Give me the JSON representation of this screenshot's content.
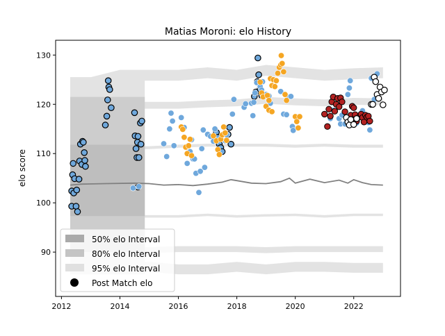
{
  "chart_data": {
    "type": "scatter",
    "title": "Matias Moroni: elo History",
    "xlabel": "",
    "ylabel": "elo score",
    "xlim": [
      2011.8,
      2023.6
    ],
    "ylim": [
      81,
      133
    ],
    "x_ticks": [
      2012,
      2014,
      2016,
      2018,
      2020,
      2022
    ],
    "y_ticks": [
      90,
      100,
      110,
      120,
      130
    ],
    "grid": false,
    "legend": {
      "placement": "lower-left",
      "entries": [
        {
          "label": "50% elo Interval",
          "swatch": "#aaaaaa",
          "kind": "patch"
        },
        {
          "label": "80% elo Interval",
          "swatch": "#c4c4c4",
          "kind": "patch"
        },
        {
          "label": "95% elo Interval",
          "swatch": "#e0e0e0",
          "kind": "patch"
        },
        {
          "label": "Post Match elo",
          "swatch": "#000000",
          "kind": "marker"
        }
      ]
    },
    "colors": {
      "interval_95": "#e3e3e3",
      "interval_80": "#cdcdcd",
      "interval_50": "#bebebe",
      "mean_line": "#808080",
      "blue_points": "#6fa8dc",
      "orange_points": "#f5a623",
      "red_points": "#b22222",
      "white_points": "#ffffff"
    },
    "mean_line": [
      [
        2012.3,
        103.6
      ],
      [
        2012.7,
        103.8
      ],
      [
        2013.5,
        103.9
      ],
      [
        2014.5,
        104.0
      ],
      [
        2015.0,
        103.9
      ],
      [
        2015.5,
        103.6
      ],
      [
        2016.0,
        103.7
      ],
      [
        2016.5,
        103.5
      ],
      [
        2017.0,
        103.8
      ],
      [
        2017.5,
        104.2
      ],
      [
        2017.8,
        104.7
      ],
      [
        2018.0,
        104.5
      ],
      [
        2018.5,
        104.0
      ],
      [
        2019.0,
        103.9
      ],
      [
        2019.5,
        104.3
      ],
      [
        2019.8,
        105.0
      ],
      [
        2020.0,
        104.0
      ],
      [
        2020.5,
        104.8
      ],
      [
        2021.0,
        104.1
      ],
      [
        2021.5,
        104.6
      ],
      [
        2021.8,
        104.0
      ],
      [
        2022.0,
        104.7
      ],
      [
        2022.3,
        104.1
      ],
      [
        2022.6,
        103.7
      ],
      [
        2023.0,
        103.6
      ]
    ],
    "bands": {
      "interval_95": {
        "x": [
          2012.3,
          2013.0,
          2014.0,
          2015.0,
          2016.0,
          2017.0,
          2018.0,
          2019.0,
          2020.0,
          2021.0,
          2022.0,
          2023.0
        ],
        "upper": [
          125.5,
          125.5,
          127.0,
          127.0,
          127.0,
          127.5,
          127.0,
          128.0,
          127.5,
          127.0,
          127.3,
          127.5
        ],
        "lower": [
          85.5,
          85.5,
          85.5,
          86.0,
          85.5,
          85.5,
          86.0,
          85.5,
          86.0,
          86.0,
          85.8,
          85.8
        ]
      },
      "interval_80": {
        "x": [
          2012.3,
          2013.0,
          2014.0,
          2015.0,
          2016.0,
          2017.0,
          2018.0,
          2019.0,
          2020.0,
          2021.0,
          2022.0,
          2023.0
        ],
        "upper": [
          121.5,
          121.5,
          120.5,
          120.5,
          120.5,
          120.8,
          121.0,
          121.5,
          121.2,
          121.0,
          121.3,
          121.2
        ],
        "lower": [
          90.0,
          90.0,
          89.8,
          89.8,
          90.0,
          90.0,
          90.0,
          89.8,
          90.0,
          90.0,
          90.0,
          90.0
        ]
      },
      "interval_50": {
        "x": [
          2012.3,
          2013.0,
          2014.0,
          2015.0,
          2016.0,
          2017.0,
          2018.0,
          2019.0,
          2020.0,
          2021.0,
          2022.0,
          2023.0
        ],
        "upper": [
          111.8,
          111.8,
          111.5,
          111.5,
          111.8,
          112.0,
          112.0,
          112.0,
          111.8,
          112.0,
          111.8,
          111.8
        ],
        "lower": [
          97.3,
          97.3,
          97.0,
          97.0,
          97.0,
          97.3,
          97.0,
          97.2,
          97.3,
          97.0,
          97.3,
          97.3
        ]
      },
      "early_block_x": [
        2012.3,
        2014.85
      ]
    },
    "series": [
      {
        "style": "blue-black-edge",
        "points": [
          [
            2012.35,
            102.4
          ],
          [
            2012.35,
            99.3
          ],
          [
            2012.38,
            105.7
          ],
          [
            2012.4,
            108.0
          ],
          [
            2012.42,
            102.0
          ],
          [
            2012.45,
            104.9
          ],
          [
            2012.5,
            99.3
          ],
          [
            2012.52,
            102.6
          ],
          [
            2012.55,
            98.2
          ],
          [
            2012.6,
            104.8
          ],
          [
            2012.62,
            108.5
          ],
          [
            2012.65,
            111.9
          ],
          [
            2012.7,
            107.8
          ],
          [
            2012.72,
            112.5
          ],
          [
            2012.75,
            112.3
          ],
          [
            2012.78,
            110.2
          ],
          [
            2012.8,
            108.6
          ],
          [
            2012.82,
            107.4
          ],
          [
            2013.5,
            115.8
          ],
          [
            2013.55,
            117.6
          ],
          [
            2013.58,
            120.9
          ],
          [
            2013.6,
            124.8
          ],
          [
            2013.62,
            123.5
          ],
          [
            2013.65,
            123.0
          ],
          [
            2013.7,
            119.3
          ],
          [
            2014.5,
            118.3
          ],
          [
            2014.52,
            113.6
          ],
          [
            2014.55,
            111.0
          ],
          [
            2014.58,
            109.2
          ],
          [
            2014.6,
            112.3
          ],
          [
            2014.62,
            113.5
          ],
          [
            2014.65,
            109.2
          ],
          [
            2014.7,
            116.2
          ],
          [
            2014.72,
            111.9
          ],
          [
            2014.75,
            116.6
          ],
          [
            2014.62,
            103.2
          ],
          [
            2017.3,
            114.3
          ],
          [
            2017.35,
            113.3
          ],
          [
            2017.4,
            111.9
          ],
          [
            2017.45,
            111.2
          ],
          [
            2017.5,
            110.4
          ],
          [
            2017.7,
            113.9
          ],
          [
            2017.75,
            115.3
          ],
          [
            2017.8,
            111.9
          ],
          [
            2018.6,
            121.6
          ],
          [
            2018.65,
            122.5
          ],
          [
            2018.7,
            124.6
          ],
          [
            2018.72,
            129.4
          ],
          [
            2018.75,
            126.0
          ],
          [
            2018.8,
            123.1
          ],
          [
            2018.85,
            121.8
          ]
        ]
      },
      {
        "style": "blue-no-edge",
        "points": [
          [
            2014.45,
            103.0
          ],
          [
            2014.65,
            103.3
          ],
          [
            2015.5,
            112.0
          ],
          [
            2015.6,
            109.4
          ],
          [
            2015.7,
            115.0
          ],
          [
            2015.75,
            118.2
          ],
          [
            2015.8,
            116.6
          ],
          [
            2015.85,
            111.6
          ],
          [
            2016.1,
            117.3
          ],
          [
            2016.2,
            115.3
          ],
          [
            2016.3,
            108.0
          ],
          [
            2016.4,
            110.4
          ],
          [
            2016.45,
            112.8
          ],
          [
            2016.5,
            108.9
          ],
          [
            2016.55,
            108.9
          ],
          [
            2016.6,
            106.0
          ],
          [
            2016.7,
            102.1
          ],
          [
            2016.75,
            106.4
          ],
          [
            2016.8,
            111.0
          ],
          [
            2016.85,
            114.8
          ],
          [
            2016.9,
            107.2
          ],
          [
            2017.0,
            113.9
          ],
          [
            2017.1,
            113.5
          ],
          [
            2017.2,
            112.5
          ],
          [
            2017.25,
            115.0
          ],
          [
            2017.6,
            112.6
          ],
          [
            2017.65,
            113.8
          ],
          [
            2017.85,
            118.0
          ],
          [
            2017.9,
            121.0
          ],
          [
            2018.25,
            119.4
          ],
          [
            2018.3,
            120.1
          ],
          [
            2018.5,
            120.2
          ],
          [
            2018.55,
            117.7
          ],
          [
            2018.58,
            120.4
          ],
          [
            2018.62,
            122.3
          ],
          [
            2018.68,
            124.4
          ],
          [
            2018.8,
            123.6
          ],
          [
            2018.85,
            122.9
          ],
          [
            2018.88,
            124.6
          ],
          [
            2019.0,
            122.0
          ],
          [
            2019.1,
            121.7
          ],
          [
            2019.15,
            120.2
          ],
          [
            2019.5,
            122.6
          ],
          [
            2019.6,
            118.0
          ],
          [
            2019.7,
            117.9
          ],
          [
            2019.8,
            121.5
          ],
          [
            2019.85,
            121.6
          ],
          [
            2019.9,
            115.5
          ],
          [
            2019.93,
            114.7
          ],
          [
            2021.2,
            117.1
          ],
          [
            2021.3,
            118.8
          ],
          [
            2021.5,
            117.1
          ],
          [
            2021.55,
            116.0
          ],
          [
            2021.6,
            117.8
          ],
          [
            2021.7,
            116.0
          ],
          [
            2021.8,
            122.0
          ],
          [
            2021.85,
            123.3
          ],
          [
            2021.88,
            124.8
          ],
          [
            2021.9,
            117.3
          ],
          [
            2022.0,
            116.4
          ],
          [
            2022.1,
            116.2
          ],
          [
            2022.3,
            118.7
          ],
          [
            2022.4,
            117.4
          ],
          [
            2022.5,
            116.3
          ],
          [
            2022.55,
            114.8
          ],
          [
            2022.6,
            125.3
          ],
          [
            2022.7,
            121.0
          ],
          [
            2022.8,
            126.2
          ]
        ]
      },
      {
        "style": "orange",
        "points": [
          [
            2016.1,
            115.4
          ],
          [
            2016.15,
            114.9
          ],
          [
            2016.2,
            113.3
          ],
          [
            2016.25,
            111.3
          ],
          [
            2016.3,
            110.0
          ],
          [
            2016.35,
            111.6
          ],
          [
            2016.4,
            112.9
          ],
          [
            2016.45,
            109.6
          ],
          [
            2017.2,
            113.6
          ],
          [
            2017.3,
            112.6
          ],
          [
            2017.35,
            110.8
          ],
          [
            2017.4,
            109.8
          ],
          [
            2017.45,
            112.9
          ],
          [
            2017.5,
            113.8
          ],
          [
            2017.55,
            115.4
          ],
          [
            2017.6,
            114.2
          ],
          [
            2017.65,
            112.7
          ],
          [
            2018.8,
            124.5
          ],
          [
            2018.85,
            122.3
          ],
          [
            2018.9,
            121.5
          ],
          [
            2019.0,
            119.6
          ],
          [
            2019.05,
            121.8
          ],
          [
            2019.1,
            120.8
          ],
          [
            2019.15,
            125.2
          ],
          [
            2019.2,
            123.8
          ],
          [
            2019.25,
            125.0
          ],
          [
            2019.3,
            123.6
          ],
          [
            2019.35,
            124.8
          ],
          [
            2019.4,
            126.3
          ],
          [
            2019.45,
            127.5
          ],
          [
            2019.5,
            128.0
          ],
          [
            2019.52,
            129.9
          ],
          [
            2019.55,
            128.3
          ],
          [
            2019.6,
            126.6
          ],
          [
            2019.65,
            122.0
          ],
          [
            2019.7,
            120.8
          ],
          [
            2019.1,
            118.8
          ],
          [
            2019.2,
            118.5
          ],
          [
            2020.0,
            117.5
          ],
          [
            2020.05,
            116.5
          ],
          [
            2020.1,
            115.2
          ],
          [
            2020.15,
            117.5
          ]
        ]
      },
      {
        "style": "red",
        "points": [
          [
            2021.0,
            118.0
          ],
          [
            2021.1,
            115.5
          ],
          [
            2021.15,
            119.0
          ],
          [
            2021.2,
            117.6
          ],
          [
            2021.25,
            120.5
          ],
          [
            2021.3,
            121.5
          ],
          [
            2021.35,
            118.6
          ],
          [
            2021.4,
            120.0
          ],
          [
            2021.45,
            121.2
          ],
          [
            2021.5,
            119.5
          ],
          [
            2021.55,
            121.3
          ],
          [
            2021.6,
            120.5
          ],
          [
            2021.7,
            118.5
          ],
          [
            2021.8,
            116.5
          ],
          [
            2021.9,
            117.8
          ],
          [
            2021.95,
            119.6
          ],
          [
            2022.0,
            119.3
          ],
          [
            2022.05,
            117.9
          ],
          [
            2022.1,
            116.6
          ],
          [
            2022.2,
            117.5
          ],
          [
            2022.25,
            118.0
          ],
          [
            2022.3,
            117.3
          ],
          [
            2022.35,
            116.4
          ],
          [
            2022.4,
            117.8
          ],
          [
            2022.45,
            117.4
          ],
          [
            2022.5,
            117.6
          ],
          [
            2022.55,
            116.6
          ]
        ]
      },
      {
        "style": "white",
        "points": [
          [
            2021.75,
            117.3
          ],
          [
            2021.8,
            116.4
          ],
          [
            2021.85,
            115.8
          ],
          [
            2021.9,
            116.9
          ],
          [
            2022.0,
            115.9
          ],
          [
            2022.1,
            117.1
          ],
          [
            2022.6,
            120.0
          ],
          [
            2022.7,
            125.5
          ],
          [
            2022.75,
            124.6
          ],
          [
            2022.8,
            122.0
          ],
          [
            2022.85,
            121.2
          ],
          [
            2022.9,
            123.5
          ],
          [
            2022.95,
            122.5
          ],
          [
            2023.0,
            119.9
          ],
          [
            2023.05,
            122.9
          ],
          [
            2022.65,
            120.0
          ]
        ]
      }
    ]
  }
}
